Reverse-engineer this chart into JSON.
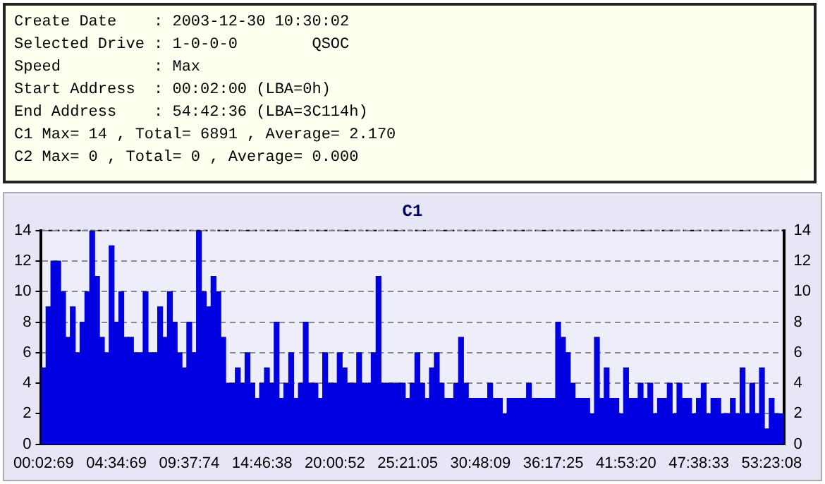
{
  "chart_data": [
    {
      "type": "other",
      "annotations": [
        "Create Date    : 2003-12-30 10:30:02",
        "Selected Drive : 1-0-0-0        QSOC",
        "Speed          : Max",
        "Start Address  : 00:02:00 (LBA=0h)",
        "End Address    : 54:42:36 (LBA=3C114h)",
        "C1 Max= 14 , Total= 6891 , Average= 2.170",
        "C2 Max= 0 , Total= 0 , Average= 0.000"
      ]
    },
    {
      "type": "bar",
      "title": "C1",
      "color": "#0000e0",
      "categories": [
        "00:02:69",
        null,
        null,
        null,
        null,
        null,
        null,
        null,
        null,
        null,
        null,
        null,
        null,
        null,
        null,
        "04:34:69",
        null,
        null,
        null,
        null,
        null,
        null,
        null,
        null,
        null,
        null,
        null,
        null,
        null,
        null,
        "09:37:74",
        null,
        null,
        null,
        null,
        null,
        null,
        null,
        null,
        null,
        null,
        null,
        null,
        null,
        null,
        "14:46:38",
        null,
        null,
        null,
        null,
        null,
        null,
        null,
        null,
        null,
        null,
        null,
        null,
        null,
        null,
        "20:00:52",
        null,
        null,
        null,
        null,
        null,
        null,
        null,
        null,
        null,
        null,
        null,
        null,
        null,
        null,
        "25:21:05",
        null,
        null,
        null,
        null,
        null,
        null,
        null,
        null,
        null,
        null,
        null,
        null,
        null,
        null,
        "30:48:09",
        null,
        null,
        null,
        null,
        null,
        null,
        null,
        null,
        null,
        null,
        null,
        null,
        null,
        null,
        "36:17:25",
        null,
        null,
        null,
        null,
        null,
        null,
        null,
        null,
        null,
        null,
        null,
        null,
        null,
        null,
        "41:53:20",
        null,
        null,
        null,
        null,
        null,
        null,
        null,
        null,
        null,
        null,
        null,
        null,
        null,
        null,
        "47:38:33",
        null,
        null,
        null,
        null,
        null,
        null,
        null,
        null,
        null,
        null,
        null,
        null,
        null,
        null,
        "53:23:08",
        null,
        null
      ],
      "values": [
        5,
        9,
        12,
        12,
        10,
        7,
        9,
        6,
        8,
        10,
        14,
        11,
        7,
        6,
        13,
        8,
        10,
        7,
        7,
        6,
        6,
        10,
        6,
        6,
        9,
        7,
        10,
        8,
        6,
        5,
        8,
        6,
        14,
        10,
        9,
        11,
        10,
        7,
        4,
        4,
        5,
        4,
        6,
        4,
        3,
        4,
        5,
        4,
        8,
        3,
        4,
        6,
        3,
        4,
        8,
        4,
        4,
        3,
        6,
        4,
        4,
        6,
        5,
        4,
        4,
        6,
        4,
        4,
        6,
        11,
        4,
        4,
        4,
        4,
        4,
        3,
        4,
        6,
        4,
        3,
        5,
        6,
        4,
        3,
        3,
        4,
        7,
        4,
        3,
        3,
        3,
        3,
        4,
        3,
        3,
        2,
        3,
        3,
        3,
        3,
        4,
        3,
        3,
        3,
        3,
        3,
        8,
        7,
        6,
        4,
        3,
        3,
        3,
        2,
        7,
        3,
        5,
        3,
        3,
        2,
        5,
        3,
        3,
        4,
        3,
        4,
        2,
        3,
        3,
        4,
        2,
        4,
        3,
        3,
        2,
        3,
        4,
        2,
        3,
        3,
        2,
        2,
        3,
        2,
        5,
        2,
        4,
        2,
        5,
        1,
        3,
        2,
        2
      ],
      "ylim": [
        0,
        14
      ],
      "yticks": [
        0,
        2,
        4,
        6,
        8,
        10,
        12,
        14
      ],
      "y2lim": [
        0,
        14
      ],
      "y2ticks": [
        0,
        2,
        4,
        6,
        8,
        10,
        12,
        14
      ],
      "grid": "y",
      "legend": false
    }
  ]
}
